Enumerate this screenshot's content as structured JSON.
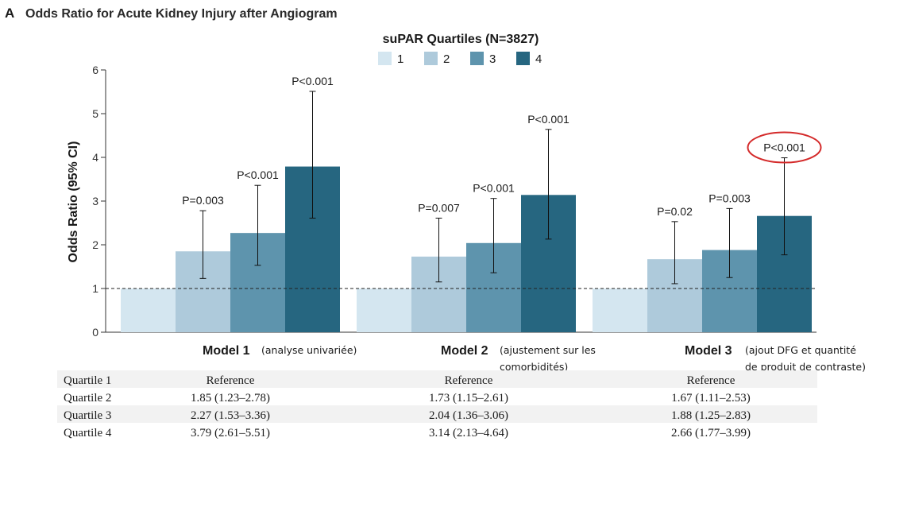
{
  "panel_letter": "A",
  "title": "Odds Ratio for Acute Kidney Injury after Angiogram",
  "colors": {
    "q1": "#d4e6f0",
    "q2": "#aecadb",
    "q3": "#5e94ad",
    "q4": "#266680",
    "row_stripe": "#f2f2f2",
    "highlight": "#d42a2a"
  },
  "chart_data": {
    "type": "bar",
    "legend_title": "suPAR Quartiles (N=3827)",
    "legend_position": "top-center",
    "ylabel": "Odds Ratio (95% CI)",
    "ylim": [
      0,
      6
    ],
    "yticks": [
      "0",
      "1",
      "2",
      "3",
      "4",
      "5",
      "6"
    ],
    "reference_line": 1,
    "series": [
      {
        "name": "1",
        "color": "#d4e6f0"
      },
      {
        "name": "2",
        "color": "#aecadb"
      },
      {
        "name": "3",
        "color": "#5e94ad"
      },
      {
        "name": "4",
        "color": "#266680"
      }
    ],
    "groups": [
      {
        "name": "Model 1",
        "note_lines": [
          "(analyse univariée)"
        ],
        "bars": [
          {
            "value": 1,
            "ci": null,
            "p": ""
          },
          {
            "value": 1.85,
            "ci": [
              1.23,
              2.78
            ],
            "p": "P=0.003"
          },
          {
            "value": 2.27,
            "ci": [
              1.53,
              3.36
            ],
            "p": "P<0.001"
          },
          {
            "value": 3.79,
            "ci": [
              2.61,
              5.51
            ],
            "p": "P<0.001"
          }
        ]
      },
      {
        "name": "Model 2",
        "note_lines": [
          "(ajustement sur les",
          "comorbidités)"
        ],
        "bars": [
          {
            "value": 1,
            "ci": null,
            "p": ""
          },
          {
            "value": 1.73,
            "ci": [
              1.15,
              2.61
            ],
            "p": "P=0.007"
          },
          {
            "value": 2.04,
            "ci": [
              1.36,
              3.06
            ],
            "p": "P<0.001"
          },
          {
            "value": 3.14,
            "ci": [
              2.13,
              4.64
            ],
            "p": "P<0.001"
          }
        ]
      },
      {
        "name": "Model 3",
        "note_lines": [
          "(ajout DFG et quantité",
          "de produit de contraste)"
        ],
        "bars": [
          {
            "value": 1,
            "ci": null,
            "p": ""
          },
          {
            "value": 1.67,
            "ci": [
              1.11,
              2.53
            ],
            "p": "P=0.02"
          },
          {
            "value": 1.88,
            "ci": [
              1.25,
              2.83
            ],
            "p": "P=0.003"
          },
          {
            "value": 2.66,
            "ci": [
              1.77,
              3.99
            ],
            "p": "P<0.001",
            "highlighted": true
          }
        ]
      }
    ]
  },
  "table": {
    "rows": [
      {
        "label": "Quartile 1",
        "cells": [
          "Reference",
          "Reference",
          "Reference"
        ]
      },
      {
        "label": "Quartile 2",
        "cells": [
          "1.85 (1.23–2.78)",
          "1.73 (1.15–2.61)",
          "1.67 (1.11–2.53)"
        ]
      },
      {
        "label": "Quartile 3",
        "cells": [
          "2.27 (1.53–3.36)",
          "2.04 (1.36–3.06)",
          "1.88 (1.25–2.83)"
        ]
      },
      {
        "label": "Quartile 4",
        "cells": [
          "3.79 (2.61–5.51)",
          "3.14 (2.13–4.64)",
          "2.66 (1.77–3.99)"
        ]
      }
    ]
  }
}
